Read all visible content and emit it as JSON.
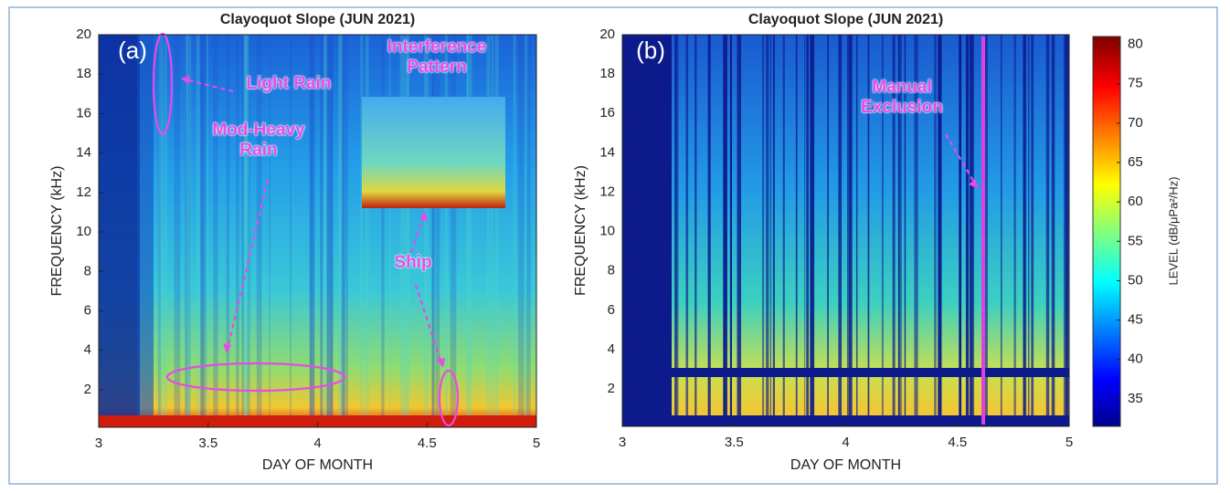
{
  "chart_data": [
    {
      "type": "spectrogram",
      "title": "Clayoquot Slope (JUN 2021)",
      "xlabel": "DAY OF MONTH",
      "ylabel": "FREQUENCY (kHz)",
      "xlim": [
        3,
        5
      ],
      "ylim": [
        0.1,
        20
      ],
      "xticks": [
        3,
        3.5,
        4,
        4.5,
        5
      ],
      "yticks": [
        2,
        4,
        6,
        8,
        10,
        12,
        14,
        16,
        18,
        20
      ],
      "annotations": [
        "(a)",
        "Light Rain",
        "Mod-Heavy Rain",
        "Interference Pattern",
        "Ship"
      ]
    },
    {
      "type": "spectrogram",
      "title": "Clayoquot Slope (JUN 2021)",
      "xlabel": "DAY OF MONTH",
      "ylabel": "FREQUENCY (kHz)",
      "xlim": [
        3,
        5
      ],
      "ylim": [
        0.1,
        20
      ],
      "xticks": [
        3,
        3.5,
        4,
        4.5,
        5
      ],
      "yticks": [
        2,
        4,
        6,
        8,
        10,
        12,
        14,
        16,
        18,
        20
      ],
      "annotations": [
        "(b)",
        "Manual Exclusion"
      ],
      "colorbar": {
        "label": "LEVEL (dB/μPa²/Hz)",
        "lim": [
          31.5,
          81
        ],
        "ticks": [
          35,
          40,
          45,
          50,
          55,
          60,
          65,
          70,
          75,
          80
        ]
      }
    }
  ]
}
